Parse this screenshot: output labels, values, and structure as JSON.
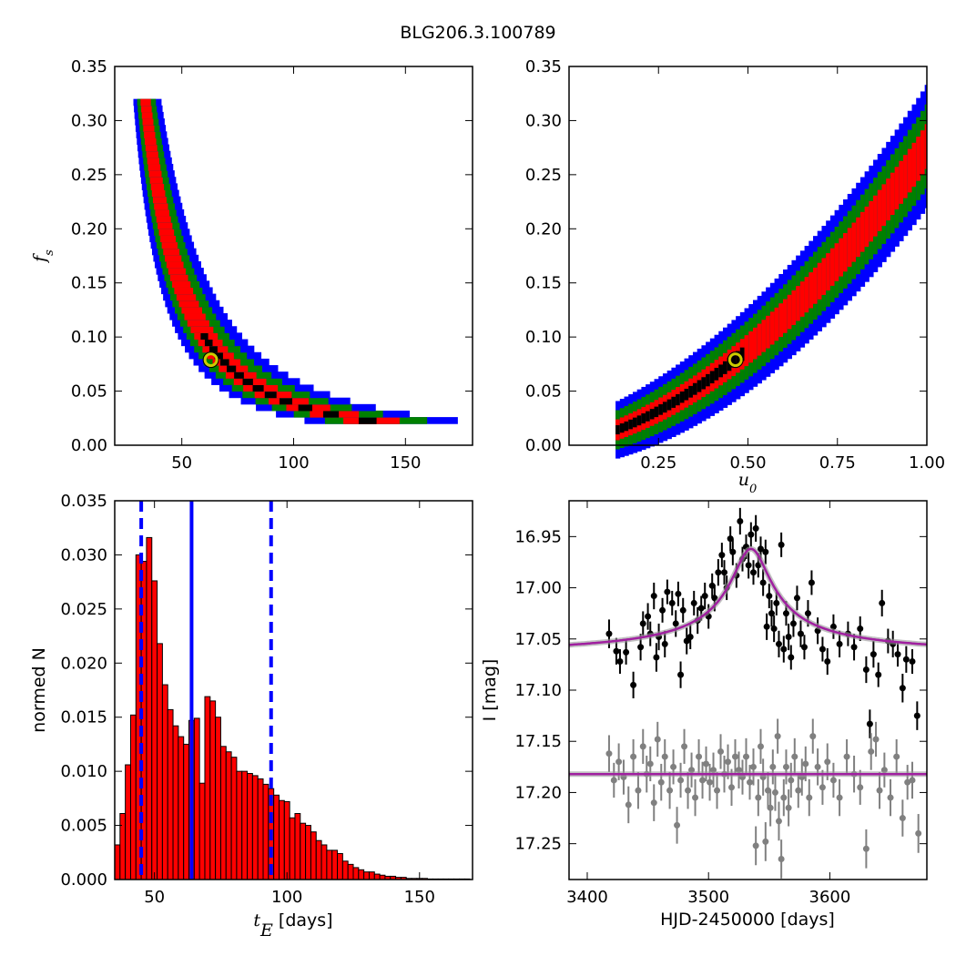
{
  "title": "BLG206.3.100789",
  "colors": {
    "outer": "#0000ff",
    "middle": "#008000",
    "inner": "#ff0000",
    "best": "#000000",
    "marker": "#cccc00",
    "hist": "#ff0000",
    "vline": "#0000ff",
    "model": "#a020a0",
    "data_top": "#000000",
    "data_bottom": "#808080"
  },
  "chart_data": [
    {
      "id": "fs_vs_tE",
      "type": "heatmap",
      "ylabel": "fs",
      "ylabel_math": true,
      "xlim": [
        20,
        180
      ],
      "ylim": [
        0.0,
        0.35
      ],
      "xticks": [
        "50",
        "100",
        "150"
      ],
      "xtick_values": [
        50,
        100,
        150
      ],
      "yticks": [
        "0.00",
        "0.05",
        "0.10",
        "0.15",
        "0.20",
        "0.25",
        "0.30",
        "0.35"
      ],
      "ytick_values": [
        0,
        0.05,
        0.1,
        0.15,
        0.2,
        0.25,
        0.3,
        0.35
      ],
      "curve": {
        "form": "fs = k / tE^2",
        "k": 350
      },
      "band_fs_range": [
        0.02,
        0.32
      ],
      "marker": {
        "x": 63,
        "y": 0.079
      }
    },
    {
      "id": "fs_vs_u0",
      "type": "heatmap",
      "xlabel": "u0",
      "xlabel_math": true,
      "xlim": [
        0.0,
        1.0
      ],
      "ylim": [
        0.0,
        0.35
      ],
      "xticks": [
        "0.25",
        "0.50",
        "0.75",
        "1.00"
      ],
      "xtick_values": [
        0.25,
        0.5,
        0.75,
        1.0
      ],
      "yticks": [
        "0.00",
        "0.05",
        "0.10",
        "0.15",
        "0.20",
        "0.25",
        "0.30",
        "0.35"
      ],
      "ytick_values": [
        0,
        0.05,
        0.1,
        0.15,
        0.2,
        0.25,
        0.3,
        0.35
      ],
      "curve": {
        "form": "fs = a*u0^2 + b*u0",
        "a": 0.198,
        "b": 0.078
      },
      "band_u0_range": [
        0.13,
        1.0
      ],
      "marker": {
        "x": 0.465,
        "y": 0.079
      }
    },
    {
      "id": "tE_histogram",
      "type": "bar",
      "xlabel": "tE",
      "xlabel_unit": "[days]",
      "ylabel": "normed N",
      "xlim": [
        35,
        170
      ],
      "ylim": [
        0.0,
        0.035
      ],
      "xticks": [
        "50",
        "100",
        "150"
      ],
      "xtick_values": [
        50,
        100,
        150
      ],
      "yticks": [
        "0.000",
        "0.005",
        "0.010",
        "0.015",
        "0.020",
        "0.025",
        "0.030",
        "0.035"
      ],
      "ytick_values": [
        0,
        0.005,
        0.01,
        0.015,
        0.02,
        0.025,
        0.03,
        0.035
      ],
      "bin_start": 35,
      "bin_width": 2,
      "values": [
        0.0032,
        0.0061,
        0.0106,
        0.0152,
        0.03,
        0.0294,
        0.0316,
        0.0276,
        0.0218,
        0.018,
        0.0157,
        0.0142,
        0.0132,
        0.0125,
        0.0147,
        0.0149,
        0.0089,
        0.0169,
        0.0165,
        0.015,
        0.0123,
        0.0118,
        0.0113,
        0.01,
        0.01,
        0.0098,
        0.0096,
        0.0093,
        0.0088,
        0.0084,
        0.0078,
        0.0073,
        0.0072,
        0.0057,
        0.0061,
        0.0052,
        0.005,
        0.0044,
        0.0036,
        0.0032,
        0.0027,
        0.0027,
        0.0024,
        0.0017,
        0.0014,
        0.0011,
        0.0009,
        0.0007,
        0.0007,
        0.0005,
        0.0004,
        0.0003,
        0.0003,
        0.0002,
        0.0002,
        0.0001,
        0.0001,
        0.0001,
        0.0001,
        5e-05,
        5e-05,
        5e-05,
        5e-05,
        5e-05,
        5e-05,
        5e-05,
        5e-05
      ],
      "vlines": [
        {
          "x": 45,
          "style": "dashed"
        },
        {
          "x": 64,
          "style": "solid"
        },
        {
          "x": 94,
          "style": "dashed"
        }
      ]
    },
    {
      "id": "lightcurve",
      "type": "scatter",
      "xlabel": "HJD-2450000 [days]",
      "ylabel": "I [mag]",
      "xlim": [
        3385,
        3680
      ],
      "ylim": [
        17.285,
        16.915
      ],
      "y_inverted": true,
      "xticks": [
        "3400",
        "3500",
        "3600"
      ],
      "xtick_values": [
        3400,
        3500,
        3600
      ],
      "yticks": [
        "16.95",
        "17.00",
        "17.05",
        "17.10",
        "17.15",
        "17.20",
        "17.25"
      ],
      "ytick_values": [
        16.95,
        17.0,
        17.05,
        17.1,
        17.15,
        17.2,
        17.25
      ],
      "model": {
        "baseline": 17.067,
        "peak": 16.962,
        "t0": 3535,
        "width": 28
      },
      "residual_baseline": 17.182,
      "series": [
        {
          "role": "data",
          "points": [
            [
              3418,
              17.045,
              0.014
            ],
            [
              3424,
              17.062,
              0.013
            ],
            [
              3427,
              17.072,
              0.012
            ],
            [
              3432,
              17.063,
              0.012
            ],
            [
              3438,
              17.095,
              0.013
            ],
            [
              3444,
              17.058,
              0.013
            ],
            [
              3446,
              17.035,
              0.012
            ],
            [
              3450,
              17.028,
              0.013
            ],
            [
              3452,
              17.045,
              0.012
            ],
            [
              3455,
              17.008,
              0.013
            ],
            [
              3457,
              17.068,
              0.014
            ],
            [
              3459,
              17.048,
              0.013
            ],
            [
              3462,
              17.022,
              0.012
            ],
            [
              3464,
              17.055,
              0.013
            ],
            [
              3466,
              17.004,
              0.012
            ],
            [
              3470,
              17.015,
              0.012
            ],
            [
              3473,
              17.035,
              0.013
            ],
            [
              3475,
              17.006,
              0.012
            ],
            [
              3477,
              17.085,
              0.013
            ],
            [
              3479,
              17.022,
              0.012
            ],
            [
              3482,
              17.052,
              0.013
            ],
            [
              3485,
              17.048,
              0.012
            ],
            [
              3488,
              17.015,
              0.012
            ],
            [
              3491,
              17.032,
              0.013
            ],
            [
              3494,
              17.02,
              0.012
            ],
            [
              3497,
              17.008,
              0.013
            ],
            [
              3500,
              17.028,
              0.012
            ],
            [
              3503,
              16.998,
              0.012
            ],
            [
              3505,
              17.01,
              0.013
            ],
            [
              3508,
              16.985,
              0.013
            ],
            [
              3511,
              16.968,
              0.012
            ],
            [
              3513,
              16.985,
              0.012
            ],
            [
              3515,
              17.0,
              0.012
            ],
            [
              3518,
              16.952,
              0.012
            ],
            [
              3520,
              16.965,
              0.013
            ],
            [
              3523,
              16.988,
              0.012
            ],
            [
              3526,
              16.935,
              0.013
            ],
            [
              3528,
              16.972,
              0.012
            ],
            [
              3531,
              16.96,
              0.012
            ],
            [
              3533,
              16.978,
              0.013
            ],
            [
              3535,
              16.948,
              0.012
            ],
            [
              3537,
              16.985,
              0.012
            ],
            [
              3539,
              16.942,
              0.013
            ],
            [
              3541,
              16.978,
              0.012
            ],
            [
              3543,
              16.962,
              0.012
            ],
            [
              3545,
              16.995,
              0.013
            ],
            [
              3547,
              16.965,
              0.012
            ],
            [
              3548,
              17.038,
              0.013
            ],
            [
              3550,
              17.008,
              0.012
            ],
            [
              3552,
              17.025,
              0.013
            ],
            [
              3554,
              17.04,
              0.013
            ],
            [
              3556,
              17.015,
              0.012
            ],
            [
              3558,
              17.055,
              0.013
            ],
            [
              3560,
              16.958,
              0.012
            ],
            [
              3562,
              17.06,
              0.013
            ],
            [
              3564,
              17.025,
              0.012
            ],
            [
              3566,
              17.048,
              0.013
            ],
            [
              3568,
              17.068,
              0.012
            ],
            [
              3570,
              17.035,
              0.013
            ],
            [
              3573,
              17.01,
              0.012
            ],
            [
              3576,
              17.045,
              0.013
            ],
            [
              3579,
              17.058,
              0.012
            ],
            [
              3582,
              17.025,
              0.013
            ],
            [
              3585,
              16.995,
              0.012
            ],
            [
              3590,
              17.042,
              0.013
            ],
            [
              3594,
              17.06,
              0.012
            ],
            [
              3598,
              17.072,
              0.013
            ],
            [
              3603,
              17.038,
              0.012
            ],
            [
              3608,
              17.055,
              0.013
            ],
            [
              3615,
              17.045,
              0.012
            ],
            [
              3620,
              17.058,
              0.013
            ],
            [
              3625,
              17.04,
              0.012
            ],
            [
              3630,
              17.08,
              0.013
            ],
            [
              3633,
              17.133,
              0.014
            ],
            [
              3636,
              17.065,
              0.013
            ],
            [
              3640,
              17.085,
              0.012
            ],
            [
              3643,
              17.015,
              0.013
            ],
            [
              3648,
              17.052,
              0.012
            ],
            [
              3652,
              17.055,
              0.013
            ],
            [
              3656,
              17.065,
              0.012
            ],
            [
              3660,
              17.098,
              0.014
            ],
            [
              3663,
              17.07,
              0.013
            ],
            [
              3668,
              17.072,
              0.012
            ],
            [
              3672,
              17.125,
              0.014
            ]
          ]
        },
        {
          "role": "data",
          "points": [
            [
              3418,
              17.162,
              0.018
            ],
            [
              3422,
              17.188,
              0.017
            ],
            [
              3426,
              17.17,
              0.018
            ],
            [
              3430,
              17.185,
              0.017
            ],
            [
              3434,
              17.212,
              0.018
            ],
            [
              3438,
              17.165,
              0.017
            ],
            [
              3442,
              17.198,
              0.018
            ],
            [
              3446,
              17.155,
              0.017
            ],
            [
              3449,
              17.182,
              0.018
            ],
            [
              3452,
              17.172,
              0.017
            ],
            [
              3455,
              17.21,
              0.018
            ],
            [
              3458,
              17.148,
              0.017
            ],
            [
              3461,
              17.19,
              0.018
            ],
            [
              3464,
              17.165,
              0.017
            ],
            [
              3468,
              17.198,
              0.018
            ],
            [
              3471,
              17.175,
              0.017
            ],
            [
              3474,
              17.232,
              0.018
            ],
            [
              3477,
              17.188,
              0.017
            ],
            [
              3480,
              17.155,
              0.017
            ],
            [
              3483,
              17.198,
              0.018
            ],
            [
              3486,
              17.178,
              0.017
            ],
            [
              3489,
              17.205,
              0.018
            ],
            [
              3492,
              17.165,
              0.017
            ],
            [
              3495,
              17.188,
              0.018
            ],
            [
              3498,
              17.172,
              0.017
            ],
            [
              3501,
              17.19,
              0.018
            ],
            [
              3504,
              17.178,
              0.017
            ],
            [
              3507,
              17.198,
              0.018
            ],
            [
              3510,
              17.16,
              0.017
            ],
            [
              3513,
              17.182,
              0.018
            ],
            [
              3516,
              17.17,
              0.017
            ],
            [
              3519,
              17.195,
              0.018
            ],
            [
              3522,
              17.165,
              0.017
            ],
            [
              3525,
              17.178,
              0.018
            ],
            [
              3528,
              17.185,
              0.017
            ],
            [
              3531,
              17.165,
              0.018
            ],
            [
              3534,
              17.19,
              0.017
            ],
            [
              3537,
              17.175,
              0.018
            ],
            [
              3539,
              17.252,
              0.019
            ],
            [
              3541,
              17.205,
              0.018
            ],
            [
              3543,
              17.155,
              0.017
            ],
            [
              3545,
              17.185,
              0.018
            ],
            [
              3547,
              17.248,
              0.019
            ],
            [
              3549,
              17.198,
              0.018
            ],
            [
              3551,
              17.215,
              0.018
            ],
            [
              3553,
              17.175,
              0.017
            ],
            [
              3555,
              17.2,
              0.018
            ],
            [
              3557,
              17.145,
              0.017
            ],
            [
              3558,
              17.228,
              0.019
            ],
            [
              3560,
              17.265,
              0.019
            ],
            [
              3562,
              17.205,
              0.018
            ],
            [
              3564,
              17.175,
              0.017
            ],
            [
              3566,
              17.215,
              0.018
            ],
            [
              3568,
              17.188,
              0.017
            ],
            [
              3571,
              17.165,
              0.018
            ],
            [
              3574,
              17.198,
              0.017
            ],
            [
              3577,
              17.185,
              0.018
            ],
            [
              3580,
              17.172,
              0.017
            ],
            [
              3583,
              17.205,
              0.018
            ],
            [
              3586,
              17.145,
              0.017
            ],
            [
              3590,
              17.175,
              0.018
            ],
            [
              3594,
              17.195,
              0.017
            ],
            [
              3598,
              17.17,
              0.018
            ],
            [
              3603,
              17.188,
              0.017
            ],
            [
              3608,
              17.205,
              0.018
            ],
            [
              3614,
              17.165,
              0.017
            ],
            [
              3620,
              17.182,
              0.018
            ],
            [
              3625,
              17.195,
              0.017
            ],
            [
              3630,
              17.255,
              0.019
            ],
            [
              3634,
              17.16,
              0.018
            ],
            [
              3638,
              17.148,
              0.017
            ],
            [
              3641,
              17.198,
              0.018
            ],
            [
              3645,
              17.178,
              0.017
            ],
            [
              3650,
              17.205,
              0.018
            ],
            [
              3655,
              17.165,
              0.017
            ],
            [
              3660,
              17.225,
              0.018
            ],
            [
              3664,
              17.19,
              0.017
            ],
            [
              3668,
              17.188,
              0.018
            ],
            [
              3673,
              17.24,
              0.019
            ]
          ]
        }
      ]
    }
  ]
}
